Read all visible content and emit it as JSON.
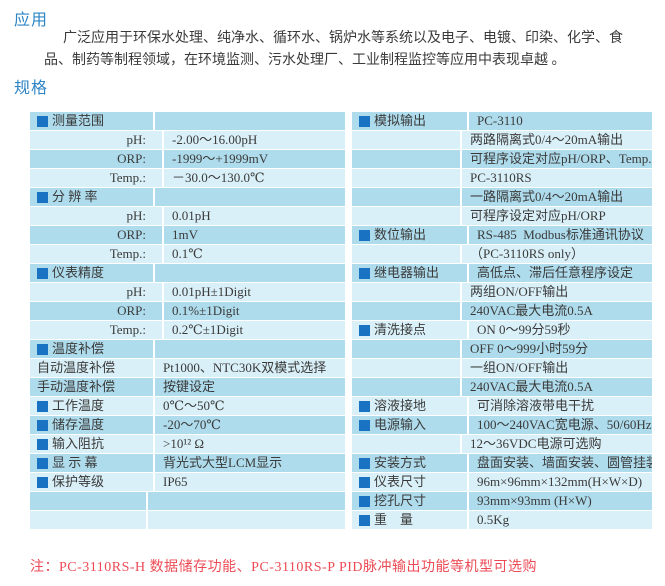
{
  "page": {
    "section1_title": "应用",
    "paragraph_lines": [
      "广泛应用于环保水处理、纯净水、循环水、锅炉水等系统以及电子、电镀、印染、化学、食",
      "品、制药等制程领域，在环境监测、污水处理厂、工业制程监控等应用中表现卓越 。"
    ],
    "section2_title": "规格",
    "note": "注：PC-3110RS-H 数据储存功能、PC-3110RS-P PID脉冲输出功能等机型可选购"
  },
  "colors": {
    "heading": "#2d85c5",
    "row_medium": "#afdcec",
    "row_light": "#d9f0f8",
    "bullet_square": "#1a72c2",
    "note_red": "#ec4b55",
    "body_text": "#3a3a3a"
  },
  "spec_left": {
    "rows": [
      {
        "type": "header",
        "label": "测量范围",
        "value": ""
      },
      {
        "type": "sub",
        "label": "pH:",
        "value": "-2.00～16.00pH"
      },
      {
        "type": "sub",
        "label": "ORP:",
        "value": "-1999～+1999mV"
      },
      {
        "type": "sub",
        "label": "Temp.:",
        "value": "－30.0～130.0℃"
      },
      {
        "type": "header",
        "label": "分 辨 率",
        "value": ""
      },
      {
        "type": "sub",
        "label": "pH:",
        "value": "0.01pH"
      },
      {
        "type": "sub",
        "label": "ORP:",
        "value": "1mV"
      },
      {
        "type": "sub",
        "label": "Temp.:",
        "value": "0.1℃"
      },
      {
        "type": "header",
        "label": "仪表精度",
        "value": ""
      },
      {
        "type": "sub",
        "label": "pH:",
        "value": "0.01pH±1Digit"
      },
      {
        "type": "sub",
        "label": "ORP:",
        "value": "0.1%±1Digit"
      },
      {
        "type": "sub",
        "label": "Temp.:",
        "value": "0.2℃±1Digit"
      },
      {
        "type": "header",
        "label": "温度补偿",
        "value": ""
      },
      {
        "type": "plain",
        "label": "自动温度补偿",
        "value": "Pt1000、NTC30K双模式选择"
      },
      {
        "type": "plain",
        "label": "手动温度补偿",
        "value": "按键设定"
      },
      {
        "type": "header",
        "label": "工作温度",
        "value": "0℃～50℃"
      },
      {
        "type": "header",
        "label": "储存温度",
        "value": "-20～70℃"
      },
      {
        "type": "header",
        "label": "输入阻抗",
        "value": ">10¹² Ω"
      },
      {
        "type": "header",
        "label": "显 示 幕",
        "value": "背光式大型LCM显示"
      },
      {
        "type": "header",
        "label": "保护等级",
        "value": "IP65"
      },
      {
        "type": "empty",
        "label": "",
        "value": ""
      },
      {
        "type": "empty",
        "label": "",
        "value": ""
      }
    ]
  },
  "spec_right": {
    "rows": [
      {
        "type": "header",
        "label": "模拟输出",
        "value": "PC-3110"
      },
      {
        "type": "empty",
        "label": "",
        "value": "两路隔离式0/4～20mA输出"
      },
      {
        "type": "empty",
        "label": "",
        "value": "可程序设定对应pH/ORP、Temp."
      },
      {
        "type": "empty",
        "label": "",
        "value": "PC-3110RS"
      },
      {
        "type": "empty",
        "label": "",
        "value": "一路隔离式0/4～20mA输出"
      },
      {
        "type": "empty",
        "label": "",
        "value": "可程序设定对应pH/ORP"
      },
      {
        "type": "header",
        "label": "数位输出",
        "value": "RS-485  Modbus标准通讯协议"
      },
      {
        "type": "empty",
        "label": "",
        "value": "（PC-3110RS only）"
      },
      {
        "type": "header",
        "label": "继电器输出",
        "value": "高低点、滞后任意程序设定"
      },
      {
        "type": "empty",
        "label": "",
        "value": "两组ON/OFF输出"
      },
      {
        "type": "empty",
        "label": "",
        "value": "240VAC最大电流0.5A"
      },
      {
        "type": "header",
        "label": "清洗接点",
        "value": "ON 0～99分59秒"
      },
      {
        "type": "empty",
        "label": "",
        "value": "OFF 0～999小时59分"
      },
      {
        "type": "empty",
        "label": "",
        "value": "一组ON/OFF输出"
      },
      {
        "type": "empty",
        "label": "",
        "value": "240VAC最大电流0.5A"
      },
      {
        "type": "header",
        "label": "溶液接地",
        "value": "可消除溶液带电干扰"
      },
      {
        "type": "header",
        "label": "电源输入",
        "value": "100～240VAC宽电源、50/60Hz"
      },
      {
        "type": "empty",
        "label": "",
        "value": "12～36VDC电源可选购"
      },
      {
        "type": "header",
        "label": "安装方式",
        "value": "盘面安装、墙面安装、圆管挂装"
      },
      {
        "type": "header",
        "label": "仪表尺寸",
        "value": "96m×96mm×132mm(H×W×D)"
      },
      {
        "type": "header",
        "label": "挖孔尺寸",
        "value": "93mm×93mm (H×W)"
      },
      {
        "type": "header",
        "label": "重　量",
        "value": "0.5Kg"
      }
    ]
  }
}
